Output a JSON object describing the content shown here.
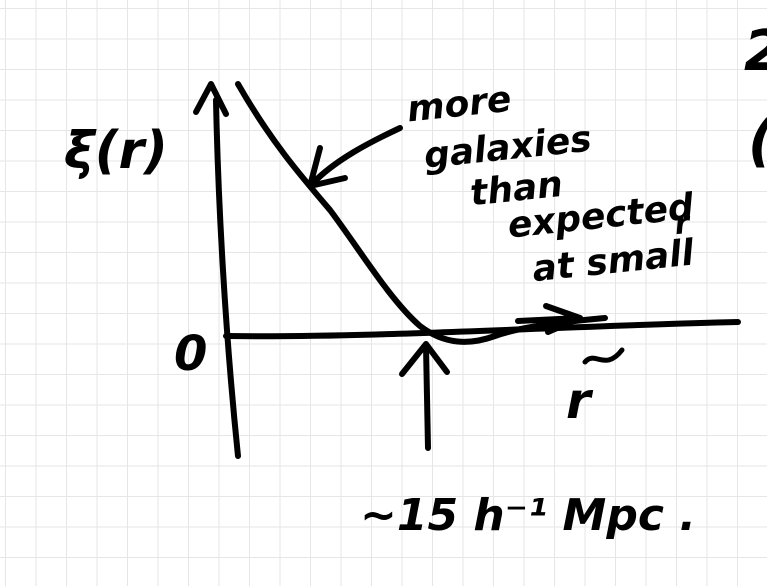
{
  "diagram": {
    "y_axis_label": "ξ(r)",
    "zero_label": "0",
    "x_axis_label": "r",
    "annotation_lines": [
      "more",
      "galaxies",
      "than",
      "expected",
      "at small",
      "r"
    ],
    "marker_label": "~15 h⁻¹ Mpc .",
    "edge_text": [
      "2",
      "("
    ]
  },
  "colors": {
    "ink": "#000000",
    "grid": "#e6e6e6",
    "paper": "#ffffff"
  }
}
